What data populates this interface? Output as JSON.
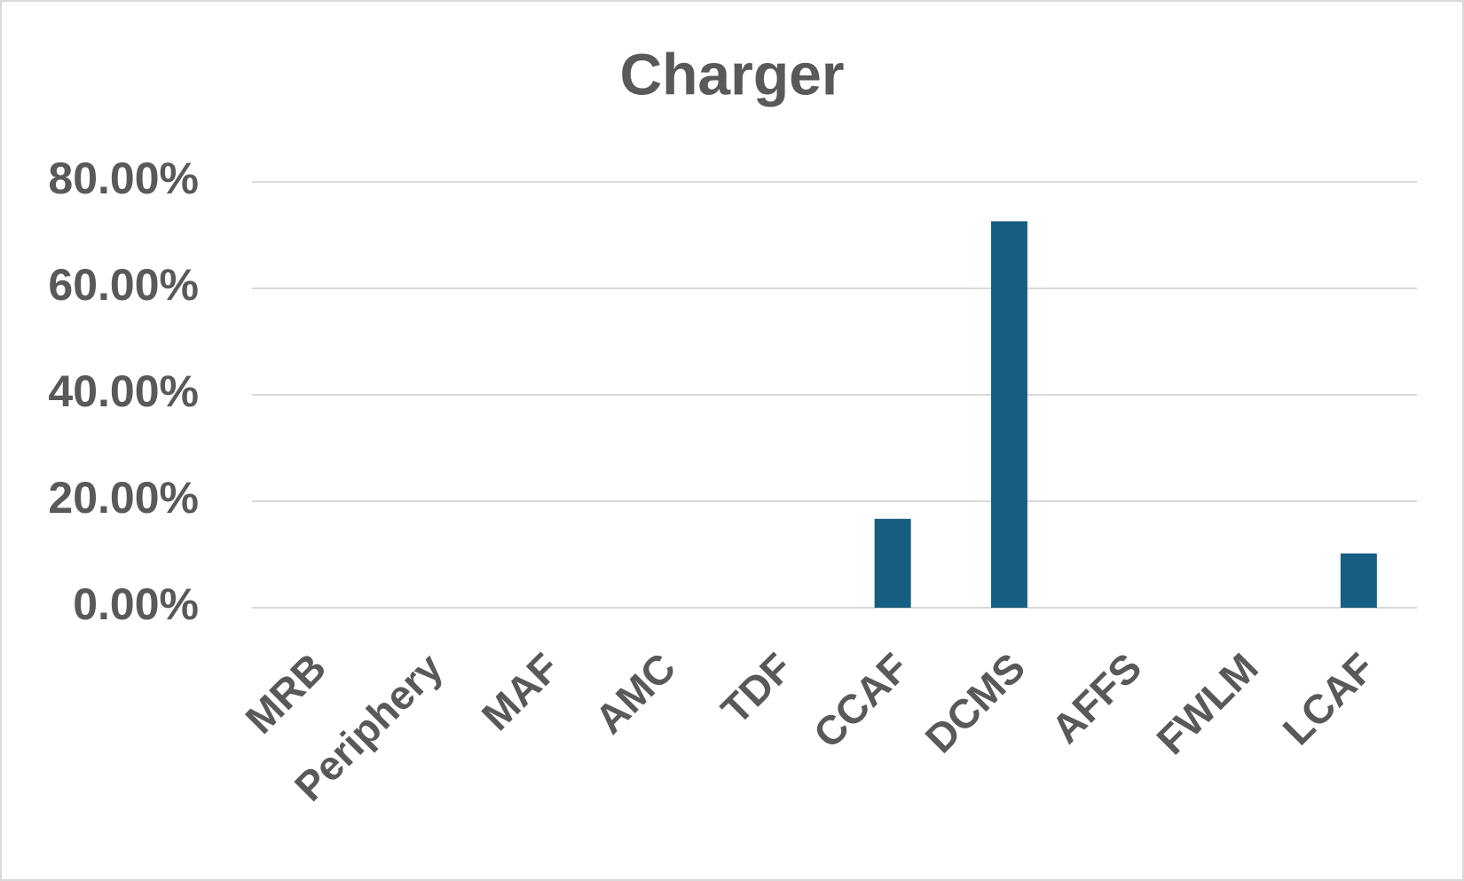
{
  "chart_data": {
    "type": "bar",
    "title": "Charger",
    "categories": [
      "MRB",
      "Periphery",
      "MAF",
      "AMC",
      "TDF",
      "CCAF",
      "DCMS",
      "AFFS",
      "FWLM",
      "LCAF"
    ],
    "values": [
      0,
      0,
      0,
      0,
      0,
      16.7,
      72.6,
      0,
      0,
      10.2
    ],
    "color": "#175f82",
    "ylim": [
      0,
      80
    ],
    "yticks": [
      {
        "value": 0,
        "label": "0.00%"
      },
      {
        "value": 20,
        "label": "20.00%"
      },
      {
        "value": 40,
        "label": "40.00%"
      },
      {
        "value": 60,
        "label": "60.00%"
      },
      {
        "value": 80,
        "label": "80.00%"
      }
    ],
    "grid": true
  }
}
